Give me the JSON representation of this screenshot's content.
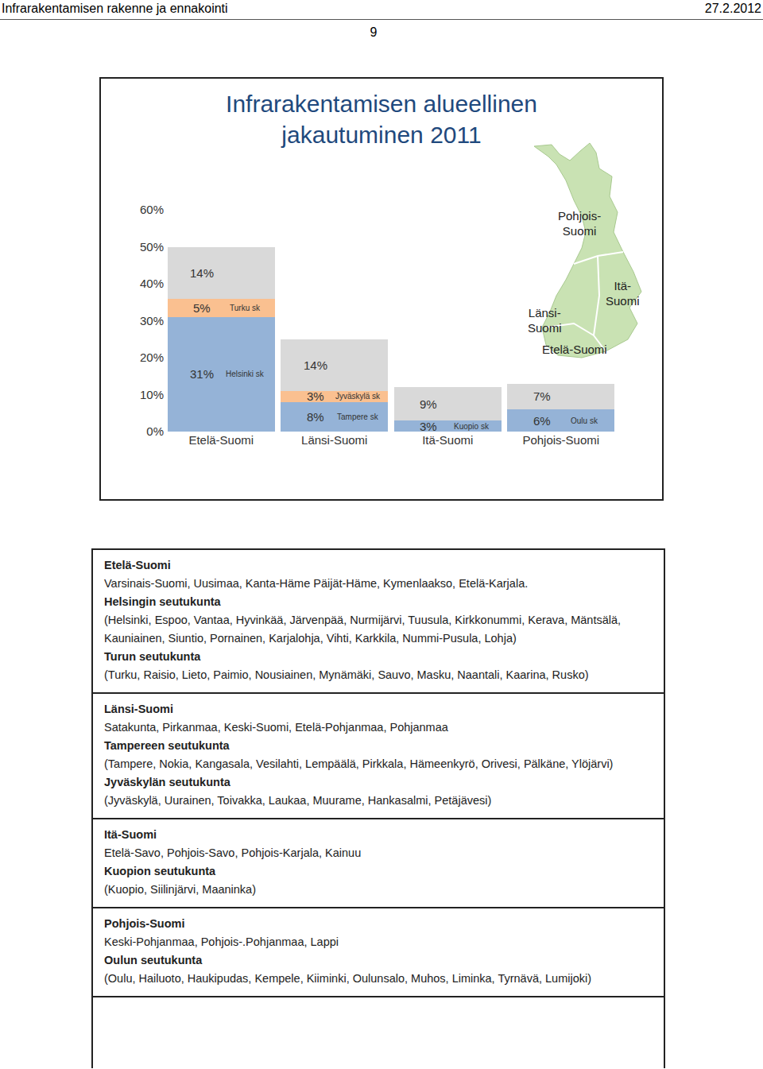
{
  "header": {
    "left": "Infrarakentamisen rakenne ja ennakointi",
    "right": "27.2.2012",
    "page": "9"
  },
  "chart_data": {
    "type": "bar",
    "stacked": true,
    "title": "Infrarakentamisen alueellinen jakautuminen 2011",
    "categories": [
      "Etelä-Suomi",
      "Länsi-Suomi",
      "Itä-Suomi",
      "Pohjois-Suomi"
    ],
    "series": [
      {
        "color": "#95b3d7",
        "values": [
          31,
          8,
          3,
          6
        ],
        "value_labels": [
          "31%",
          "8%",
          "3%",
          "6%"
        ],
        "segment_labels": [
          "Helsinki sk",
          "Tampere sk",
          "Kuopio sk",
          "Oulu sk"
        ]
      },
      {
        "color": "#fac090",
        "values": [
          5,
          3,
          null,
          null
        ],
        "value_labels": [
          "5%",
          "3%",
          null,
          null
        ],
        "segment_labels": [
          "Turku sk",
          "Jyväskylä sk",
          null,
          null
        ]
      },
      {
        "color": "#d9d9d9",
        "values": [
          14,
          14,
          9,
          7
        ],
        "value_labels": [
          "14%",
          "14%",
          "9%",
          "7%"
        ],
        "segment_labels": [
          null,
          null,
          null,
          null
        ]
      }
    ],
    "data_labels": true,
    "grid": false,
    "ylim": [
      0,
      60
    ],
    "yticks": [
      {
        "value": 0,
        "label": "0%"
      },
      {
        "value": 10,
        "label": "10%"
      },
      {
        "value": 20,
        "label": "20%"
      },
      {
        "value": 30,
        "label": "30%"
      },
      {
        "value": 40,
        "label": "40%"
      },
      {
        "value": 50,
        "label": "50%"
      },
      {
        "value": 60,
        "label": "60%"
      }
    ]
  },
  "map": {
    "labels": [
      {
        "lines": [
          "Pohjois-",
          "Suomi"
        ]
      },
      {
        "lines": [
          "Itä-",
          "Suomi"
        ]
      },
      {
        "lines": [
          "Länsi-",
          "Suomi"
        ]
      },
      {
        "lines": [
          "Etelä-Suomi"
        ]
      }
    ]
  },
  "regions": [
    {
      "name": "Etelä-Suomi",
      "provinces": "Varsinais-Suomi, Uusimaa, Kanta-Häme Päijät-Häme, Kymenlaakso,  Etelä-Karjala.",
      "subregions": [
        {
          "name": "Helsingin seutukunta",
          "municipalities": "(Helsinki, Espoo, Vantaa, Hyvinkää, Järvenpää, Nurmijärvi, Tuusula, Kirkkonummi, Kerava, Mäntsälä, Kauniainen, Siuntio, Pornainen, Karjalohja, Vihti, Karkkila, Nummi-Pusula, Lohja)"
        },
        {
          "name": "Turun seutukunta",
          "municipalities": "(Turku, Raisio, Lieto, Paimio, Nousiainen, Mynämäki, Sauvo, Masku, Naantali, Kaarina, Rusko)"
        }
      ]
    },
    {
      "name": "Länsi-Suomi",
      "provinces": "Satakunta, Pirkanmaa, Keski-Suomi, Etelä-Pohjanmaa, Pohjanmaa",
      "subregions": [
        {
          "name": "Tampereen seutukunta",
          "municipalities": "(Tampere, Nokia, Kangasala, Vesilahti, Lempäälä, Pirkkala, Hämeenkyrö, Orivesi, Pälkäne, Ylöjärvi)"
        },
        {
          "name": "Jyväskylän seutukunta",
          "municipalities": "(Jyväskylä, Uurainen, Toivakka, Laukaa, Muurame, Hankasalmi, Petäjävesi)"
        }
      ]
    },
    {
      "name": "Itä-Suomi",
      "provinces": "Etelä-Savo, Pohjois-Savo, Pohjois-Karjala, Kainuu",
      "subregions": [
        {
          "name": "Kuopion seutukunta",
          "municipalities": "(Kuopio, Siilinjärvi, Maaninka)"
        }
      ]
    },
    {
      "name": "Pohjois-Suomi",
      "provinces": "Keski-Pohjanmaa, Pohjois-.Pohjanmaa, Lappi",
      "subregions": [
        {
          "name": "Oulun seutukunta",
          "municipalities": "(Oulu, Hailuoto, Haukipudas, Kempele, Kiiminki,  Oulunsalo, Muhos, Liminka, Tyrnävä, Lumijoki)"
        }
      ]
    }
  ]
}
